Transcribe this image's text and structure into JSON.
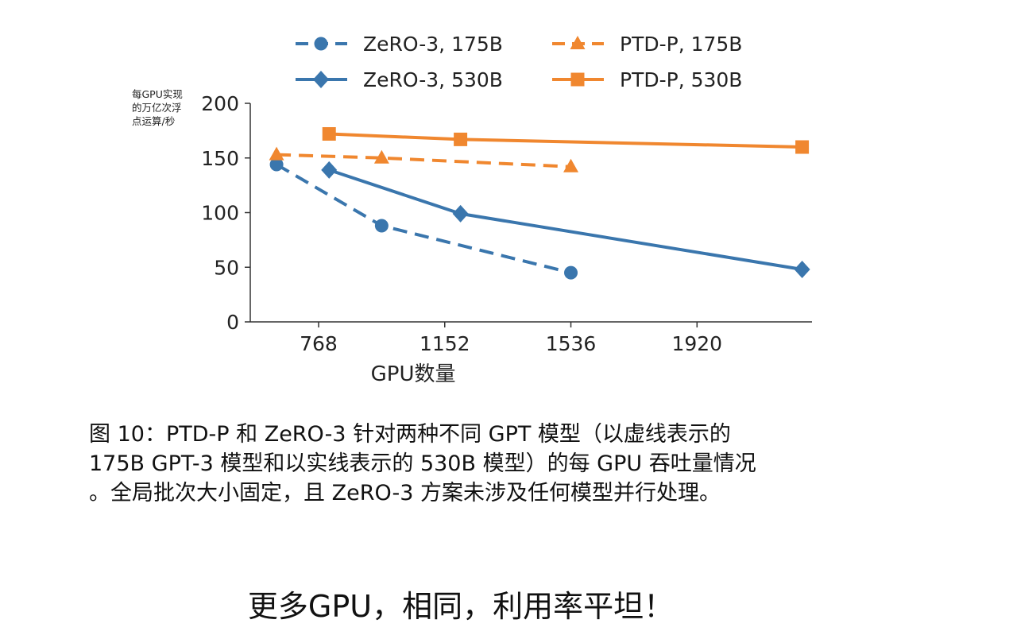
{
  "chart_data": {
    "type": "line",
    "ylabel": [
      "每GPU实现",
      "的万亿次浮",
      "点运算/秒"
    ],
    "xlabel": "GPU数量",
    "xticks": [
      768,
      1152,
      1536,
      1920
    ],
    "yticks": [
      0,
      50,
      100,
      150,
      200
    ],
    "xlim": [
      560,
      2270
    ],
    "ylim": [
      0,
      200
    ],
    "legend_position": "top",
    "series": [
      {
        "name": "ZeRO-3, 175B",
        "color": "#3a76ad",
        "dash": true,
        "marker": "circle",
        "x": [
          640,
          960,
          1536
        ],
        "y": [
          144,
          88,
          45
        ]
      },
      {
        "name": "ZeRO-3, 530B",
        "color": "#3a76ad",
        "dash": false,
        "marker": "diamond",
        "x": [
          800,
          1200,
          2240
        ],
        "y": [
          139,
          99,
          48
        ]
      },
      {
        "name": "PTD-P, 175B",
        "color": "#f0872f",
        "dash": true,
        "marker": "triangle",
        "x": [
          640,
          960,
          1536
        ],
        "y": [
          153,
          150,
          142
        ]
      },
      {
        "name": "PTD-P, 530B",
        "color": "#f0872f",
        "dash": false,
        "marker": "square",
        "x": [
          800,
          1200,
          2240
        ],
        "y": [
          172,
          167,
          160
        ]
      }
    ]
  },
  "caption": {
    "line1": "图 10：PTD-P 和 ZeRO-3 针对两种不同 GPT 模型（以虚线表示的",
    "line2": "175B GPT-3 模型和以实线表示的 530B 模型）的每 GPU 吞吐量情况",
    "line3": "。全局批次大小固定，且 ZeRO-3 方案未涉及任何模型并行处理。"
  },
  "tagline": "更多GPU，相同，利用率平坦！"
}
